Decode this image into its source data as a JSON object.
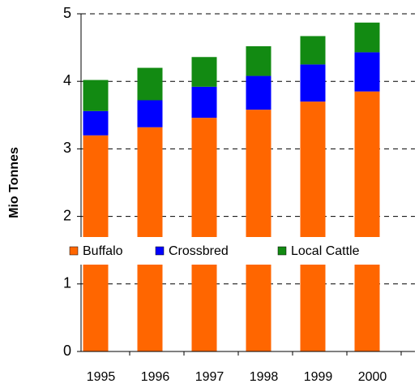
{
  "chart_data": {
    "type": "stacked_bar",
    "y_axis_label": "Mio Tonnes",
    "categories": [
      "1995",
      "1996",
      "1997",
      "1998",
      "1999",
      "2000"
    ],
    "series": [
      {
        "name": "Buffalo",
        "color": "#ff6600",
        "values": [
          3.2,
          3.32,
          3.46,
          3.58,
          3.7,
          3.85
        ]
      },
      {
        "name": "Crossbred",
        "color": "#0000ff",
        "values": [
          0.36,
          0.4,
          0.46,
          0.5,
          0.55,
          0.58
        ]
      },
      {
        "name": "Local Cattle",
        "color": "#128a12",
        "values": [
          0.46,
          0.48,
          0.44,
          0.44,
          0.42,
          0.44
        ]
      }
    ],
    "ylim": [
      0,
      5
    ],
    "yticks": [
      0,
      1,
      2,
      3,
      4,
      5
    ],
    "grid": true
  }
}
